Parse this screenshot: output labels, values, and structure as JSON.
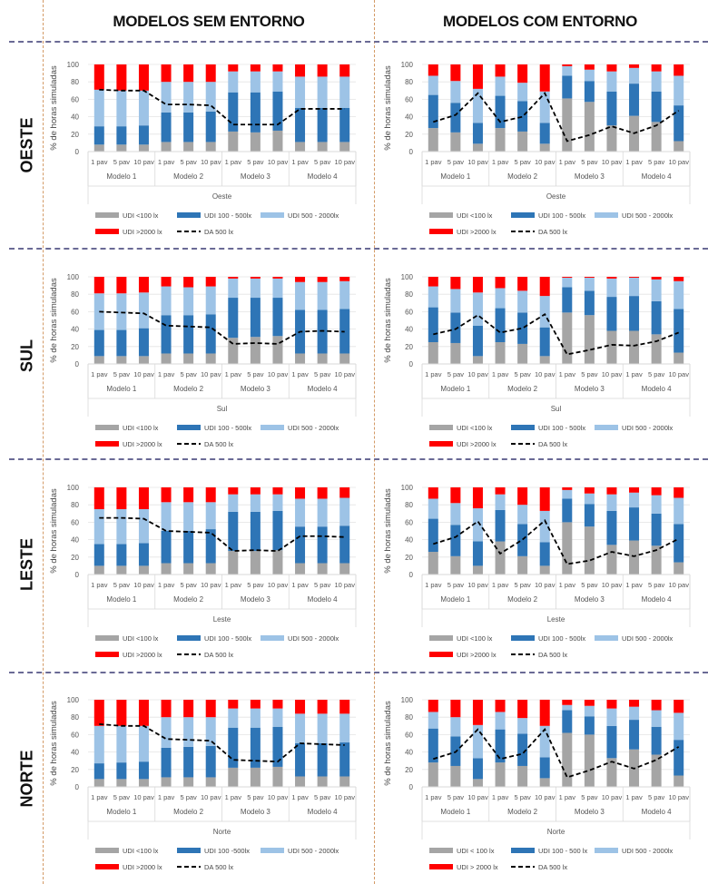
{
  "headers": {
    "left": "MODELOS SEM ENTORNO",
    "right": "MODELOS COM ENTORNO"
  },
  "rows": [
    "OESTE",
    "SUL",
    "LESTE",
    "NORTE"
  ],
  "colors": {
    "udi_lt100": "#a5a5a5",
    "udi_100_500": "#2e75b6",
    "udi_500_2000": "#9dc3e6",
    "udi_gt2000": "#ff0000",
    "da_500": "#000000",
    "vertical_divider": "#d39a66",
    "horizontal_divider": "#6a6a95"
  },
  "chart_data": [
    {
      "type": "bar",
      "stacked": true,
      "title": "",
      "group": "Modelos sem entorno",
      "orientation": "Oeste",
      "xlabel": "Oeste",
      "ylabel": "% de horas simuladas",
      "ylim": [
        0,
        100
      ],
      "yticks": [
        "0",
        "20",
        "40",
        "60",
        "80",
        "100"
      ],
      "categories": [
        "1 pav",
        "5 pav",
        "10 pav",
        "1 pav",
        "5 pav",
        "10 pav",
        "1 pav",
        "5 pav",
        "10 pav",
        "1 pav",
        "5 pav",
        "10 pav"
      ],
      "groups": [
        "Modelo 1",
        "Modelo 2",
        "Modelo 3",
        "Modelo 4"
      ],
      "legend": [
        "UDI <100 lx",
        "UDI 100 - 500lx",
        "UDI 500 - 2000lx",
        "UDI >2000 lx",
        "DA 500 lx"
      ],
      "legend_position": "bottom",
      "series": [
        {
          "name": "UDI <100 lx",
          "values": [
            8,
            8,
            8,
            11,
            11,
            11,
            23,
            22,
            24,
            11,
            11,
            11
          ]
        },
        {
          "name": "UDI 100 - 500lx",
          "values": [
            21,
            21,
            22,
            34,
            34,
            35,
            45,
            46,
            45,
            39,
            39,
            39
          ]
        },
        {
          "name": "UDI 500 - 2000lx",
          "values": [
            42,
            41,
            40,
            35,
            35,
            34,
            24,
            24,
            23,
            36,
            36,
            36
          ]
        },
        {
          "name": "UDI >2000 lx",
          "values": [
            29,
            30,
            30,
            20,
            20,
            20,
            8,
            8,
            8,
            14,
            14,
            14
          ]
        },
        {
          "name": "DA 500 lx",
          "type": "line",
          "values": [
            71,
            70,
            70,
            54,
            54,
            53,
            31,
            31,
            31,
            49,
            49,
            49
          ]
        }
      ]
    },
    {
      "type": "bar",
      "stacked": true,
      "title": "",
      "group": "Modelos com entorno",
      "orientation": "Oeste",
      "xlabel": "Oeste",
      "ylabel": "% de horas simuladas",
      "ylim": [
        0,
        100
      ],
      "yticks": [
        "0",
        "20",
        "40",
        "60",
        "80",
        "100"
      ],
      "categories": [
        "1 pav",
        "5 pav",
        "10 pav",
        "1 pav",
        "5 pav",
        "10 pav",
        "1 pav",
        "5 pav",
        "10 pav",
        "1 pav",
        "5 pav",
        "10 pav"
      ],
      "groups": [
        "Modelo 1",
        "Modelo 2",
        "Modelo 3",
        "Modelo 4"
      ],
      "legend": [
        "UDI <100 lx",
        "UDI 100 - 500lx",
        "UDI 500 - 2000lx",
        "UDI >2000 lx",
        "DA 500 lx"
      ],
      "legend_position": "bottom",
      "series": [
        {
          "name": "UDI <100 lx",
          "values": [
            27,
            22,
            9,
            27,
            23,
            9,
            61,
            57,
            30,
            41,
            34,
            12
          ]
        },
        {
          "name": "UDI 100 - 500lx",
          "values": [
            38,
            34,
            24,
            37,
            35,
            24,
            26,
            24,
            39,
            37,
            35,
            41
          ]
        },
        {
          "name": "UDI 500 - 2000lx",
          "values": [
            22,
            25,
            39,
            22,
            21,
            36,
            11,
            13,
            23,
            18,
            23,
            34
          ]
        },
        {
          "name": "UDI >2000 lx",
          "values": [
            13,
            19,
            28,
            14,
            21,
            31,
            2,
            6,
            8,
            4,
            8,
            13
          ]
        },
        {
          "name": "DA 500 lx",
          "type": "line",
          "values": [
            34,
            42,
            67,
            34,
            40,
            67,
            12,
            19,
            29,
            21,
            30,
            47
          ]
        }
      ]
    },
    {
      "type": "bar",
      "stacked": true,
      "title": "",
      "group": "Modelos sem entorno",
      "orientation": "Sul",
      "xlabel": "Sul",
      "ylabel": "% de horas simuladas",
      "ylim": [
        0,
        100
      ],
      "yticks": [
        "0",
        "20",
        "40",
        "60",
        "80",
        "100"
      ],
      "categories": [
        "1 pav",
        "5 pav",
        "10 pav",
        "1 pav",
        "5 pav",
        "10 pav",
        "1 pav",
        "5 pav",
        "10 pav",
        "1 pav",
        "5 pav",
        "10 pav"
      ],
      "groups": [
        "Modelo 1",
        "Modelo 2",
        "Modelo 3",
        "Modelo 4"
      ],
      "legend": [
        "UDI <100 lx",
        "UDI 100 - 500lx",
        "UDI 500 - 2000lx",
        "UDI >2000 lx",
        "DA 500 lx"
      ],
      "legend_position": "bottom",
      "series": [
        {
          "name": "UDI <100 lx",
          "values": [
            9,
            9,
            9,
            12,
            12,
            12,
            30,
            31,
            32,
            12,
            12,
            12
          ]
        },
        {
          "name": "UDI 100 - 500lx",
          "values": [
            30,
            30,
            32,
            44,
            44,
            45,
            46,
            45,
            44,
            50,
            50,
            51
          ]
        },
        {
          "name": "UDI 500 - 2000lx",
          "values": [
            42,
            42,
            41,
            33,
            32,
            32,
            22,
            22,
            22,
            32,
            32,
            32
          ]
        },
        {
          "name": "UDI >2000 lx",
          "values": [
            19,
            19,
            18,
            11,
            12,
            11,
            2,
            2,
            2,
            6,
            6,
            5
          ]
        },
        {
          "name": "DA 500 lx",
          "type": "line",
          "values": [
            60,
            59,
            58,
            44,
            43,
            42,
            23,
            24,
            23,
            37,
            38,
            37
          ]
        }
      ]
    },
    {
      "type": "bar",
      "stacked": true,
      "title": "",
      "group": "Modelos com entorno",
      "orientation": "Sul",
      "xlabel": "Sul",
      "ylabel": "% de horas simuladas",
      "ylim": [
        0,
        100
      ],
      "yticks": [
        "0",
        "20",
        "40",
        "60",
        "80",
        "100"
      ],
      "categories": [
        "1 pav",
        "5 pav",
        "10 pav",
        "1 pav",
        "5 pav",
        "10 pav",
        "1 pav",
        "5 pav",
        "10 pav",
        "1 pav",
        "5 pav",
        "10 pav"
      ],
      "groups": [
        "Modelo 1",
        "Modelo 2",
        "Modelo 3",
        "Modelo 4"
      ],
      "legend": [
        "UDI <100 lx",
        "UDI 100 - 500lx",
        "UDI 500 - 2000lx",
        "UDI >2000 lx",
        "DA 500 lx"
      ],
      "legend_position": "bottom",
      "series": [
        {
          "name": "UDI <100 lx",
          "values": [
            25,
            24,
            9,
            25,
            23,
            9,
            59,
            56,
            38,
            38,
            34,
            13
          ]
        },
        {
          "name": "UDI 100 - 500lx",
          "values": [
            40,
            35,
            35,
            39,
            36,
            33,
            29,
            28,
            39,
            40,
            38,
            50
          ]
        },
        {
          "name": "UDI 500 - 2000lx",
          "values": [
            24,
            27,
            38,
            23,
            25,
            36,
            11,
            15,
            21,
            21,
            25,
            32
          ]
        },
        {
          "name": "UDI >2000 lx",
          "values": [
            11,
            14,
            18,
            13,
            16,
            22,
            1,
            1,
            2,
            1,
            3,
            5
          ]
        },
        {
          "name": "DA 500 lx",
          "type": "line",
          "values": [
            34,
            40,
            56,
            36,
            41,
            57,
            11,
            16,
            22,
            21,
            26,
            36
          ]
        }
      ]
    },
    {
      "type": "bar",
      "stacked": true,
      "title": "",
      "group": "Modelos sem entorno",
      "orientation": "Leste",
      "xlabel": "Leste",
      "ylabel": "% de horas simuladas",
      "ylim": [
        0,
        100
      ],
      "yticks": [
        "0",
        "20",
        "40",
        "60",
        "80",
        "100"
      ],
      "categories": [
        "1 pav",
        "5 pav",
        "10 pav",
        "1 pav",
        "5 pav",
        "10 pav",
        "1 pav",
        "5 pav",
        "10 pav",
        "1 pav",
        "5 pav",
        "10 pav"
      ],
      "groups": [
        "Modelo 1",
        "Modelo 2",
        "Modelo 3",
        "Modelo 4"
      ],
      "legend": [
        "UDI <100 lx",
        "UDI 100 - 500lx",
        "UDI 500 - 2000lx",
        "UDI >2000 lx",
        "DA 500 lx"
      ],
      "legend_position": "bottom",
      "series": [
        {
          "name": "UDI <100 lx",
          "values": [
            10,
            10,
            10,
            13,
            13,
            13,
            27,
            27,
            28,
            13,
            13,
            13
          ]
        },
        {
          "name": "UDI 100 - 500lx",
          "values": [
            25,
            25,
            26,
            37,
            37,
            39,
            45,
            45,
            45,
            42,
            42,
            43
          ]
        },
        {
          "name": "UDI 500 - 2000lx",
          "values": [
            40,
            40,
            39,
            33,
            33,
            31,
            20,
            20,
            19,
            32,
            32,
            32
          ]
        },
        {
          "name": "UDI >2000 lx",
          "values": [
            25,
            25,
            25,
            17,
            17,
            17,
            8,
            8,
            8,
            13,
            13,
            12
          ]
        },
        {
          "name": "DA 500 lx",
          "type": "line",
          "values": [
            65,
            65,
            64,
            50,
            49,
            48,
            27,
            28,
            27,
            44,
            44,
            43
          ]
        }
      ]
    },
    {
      "type": "bar",
      "stacked": true,
      "title": "",
      "group": "Modelos com entorno",
      "orientation": "Leste",
      "xlabel": "Leste",
      "ylabel": "% de horas simuladas",
      "ylim": [
        0,
        100
      ],
      "yticks": [
        "0",
        "20",
        "40",
        "60",
        "80",
        "100"
      ],
      "categories": [
        "1 pav",
        "5 pav",
        "10 pav",
        "1 pav",
        "5 pav",
        "10 pav",
        "1 pav",
        "5 pav",
        "10 pav",
        "1 pav",
        "5 pav",
        "10 pav"
      ],
      "groups": [
        "Modelo 1",
        "Modelo 2",
        "Modelo 3",
        "Modelo 4"
      ],
      "legend": [
        "UDI <100 lx",
        "UDI 100 - 500lx",
        "UDI 500 - 2000lx",
        "UDI >2000 lx",
        "DA 500 lx"
      ],
      "legend_position": "bottom",
      "series": [
        {
          "name": "UDI <100 lx",
          "values": [
            26,
            21,
            10,
            38,
            21,
            10,
            60,
            55,
            34,
            39,
            33,
            14
          ]
        },
        {
          "name": "UDI 100 - 500lx",
          "values": [
            38,
            36,
            28,
            36,
            37,
            27,
            27,
            26,
            39,
            38,
            37,
            44
          ]
        },
        {
          "name": "UDI 500 - 2000lx",
          "values": [
            23,
            25,
            38,
            18,
            22,
            36,
            10,
            12,
            19,
            17,
            21,
            30
          ]
        },
        {
          "name": "UDI >2000 lx",
          "values": [
            13,
            18,
            24,
            8,
            20,
            27,
            3,
            7,
            8,
            6,
            9,
            12
          ]
        },
        {
          "name": "DA 500 lx",
          "type": "line",
          "values": [
            35,
            43,
            61,
            24,
            40,
            62,
            12,
            16,
            26,
            21,
            28,
            41
          ]
        }
      ]
    },
    {
      "type": "bar",
      "stacked": true,
      "title": "",
      "group": "Modelos sem entorno",
      "orientation": "Norte",
      "xlabel": "Norte",
      "ylabel": "% de horas simuladas",
      "ylim": [
        0,
        100
      ],
      "yticks": [
        "0",
        "20",
        "40",
        "60",
        "80",
        "100"
      ],
      "categories": [
        "1 pav",
        "5 pav",
        "10 pav",
        "1 pav",
        "5 pav",
        "10 pav",
        "1 pav",
        "5 pav",
        "10 pav",
        "1 pav",
        "5 pav",
        "10 pav"
      ],
      "groups": [
        "Modelo 1",
        "Modelo 2",
        "Modelo 3",
        "Modelo 4"
      ],
      "legend": [
        "UDI <100 lx",
        "UDI 100 -500lx",
        "UDI 500 - 2000lx",
        "UDI >2000 lx",
        "DA 500 lx"
      ],
      "legend_position": "bottom",
      "series": [
        {
          "name": "UDI <100 lx",
          "values": [
            9,
            9,
            9,
            11,
            11,
            11,
            22,
            22,
            23,
            12,
            12,
            12
          ]
        },
        {
          "name": "UDI 100 -500lx",
          "values": [
            18,
            19,
            20,
            34,
            35,
            36,
            46,
            46,
            46,
            38,
            38,
            39
          ]
        },
        {
          "name": "UDI 500 - 2000lx",
          "values": [
            43,
            42,
            41,
            35,
            34,
            33,
            22,
            22,
            21,
            34,
            34,
            33
          ]
        },
        {
          "name": "UDI >2000 lx",
          "values": [
            30,
            30,
            30,
            20,
            20,
            20,
            10,
            10,
            10,
            16,
            16,
            16
          ]
        },
        {
          "name": "DA 500 lx",
          "type": "line",
          "values": [
            72,
            70,
            70,
            55,
            54,
            53,
            31,
            30,
            29,
            50,
            49,
            48
          ]
        }
      ]
    },
    {
      "type": "bar",
      "stacked": true,
      "title": "",
      "group": "Modelos com entorno",
      "orientation": "Norte",
      "xlabel": "Norte",
      "ylabel": "% de horas simuladas",
      "ylim": [
        0,
        100
      ],
      "yticks": [
        "0",
        "20",
        "40",
        "60",
        "80",
        "100"
      ],
      "categories": [
        "1 pav",
        "5 pav",
        "10 pav",
        "1 pav",
        "5 pav",
        "10 pav",
        "1 pav",
        "5 pav",
        "10 pav",
        "1 pav",
        "5 pav",
        "10 pav"
      ],
      "groups": [
        "Modelo 1",
        "Modelo 2",
        "Modelo 3",
        "Modelo 4"
      ],
      "legend": [
        "UDI < 100 lx",
        "UDI 100 - 500 lx",
        "UDI 500 - 2000lx",
        "UDI > 2000 lx",
        "DA 500 lx"
      ],
      "legend_position": "bottom",
      "series": [
        {
          "name": "UDI < 100 lx",
          "values": [
            28,
            24,
            9,
            28,
            24,
            10,
            62,
            60,
            33,
            43,
            37,
            13
          ]
        },
        {
          "name": "UDI 100 - 500 lx",
          "values": [
            39,
            34,
            24,
            38,
            37,
            24,
            26,
            21,
            37,
            34,
            32,
            41
          ]
        },
        {
          "name": "UDI 500 - 2000lx",
          "values": [
            19,
            22,
            38,
            20,
            18,
            36,
            6,
            12,
            20,
            15,
            19,
            31
          ]
        },
        {
          "name": "UDI > 2000 lx",
          "values": [
            14,
            20,
            29,
            14,
            21,
            30,
            6,
            7,
            10,
            8,
            12,
            15
          ]
        },
        {
          "name": "DA 500 lx",
          "type": "line",
          "values": [
            32,
            40,
            66,
            32,
            38,
            66,
            11,
            19,
            29,
            21,
            31,
            46
          ]
        }
      ]
    }
  ]
}
